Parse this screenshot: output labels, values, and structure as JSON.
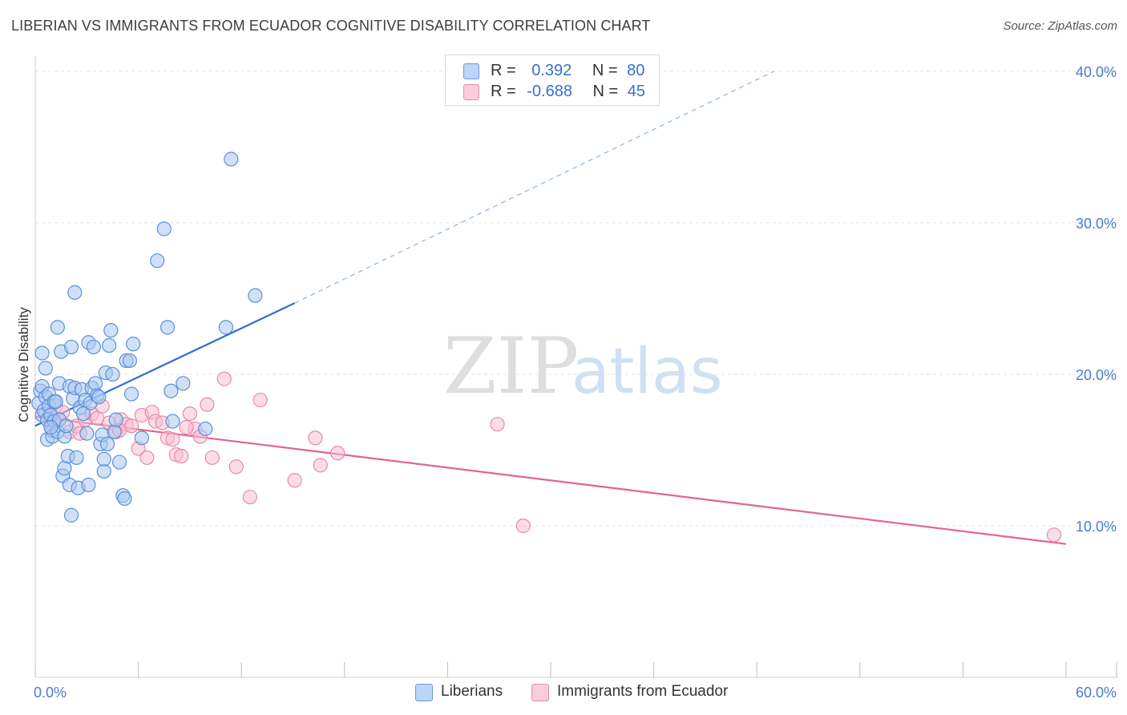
{
  "title": "LIBERIAN VS IMMIGRANTS FROM ECUADOR COGNITIVE DISABILITY CORRELATION CHART",
  "source": "Source: ZipAtlas.com",
  "watermark": {
    "zip": "ZIP",
    "atlas": "atlas"
  },
  "legend": {
    "r_label": "R =",
    "n_label": "N =",
    "series": [
      {
        "r": "0.392",
        "n": "80"
      },
      {
        "r": "-0.688",
        "n": "45"
      }
    ]
  },
  "bottom_legend": [
    "Liberians",
    "Immigrants from Ecuador"
  ],
  "colors": {
    "blue_fill": "#a9c8f0",
    "blue_stroke": "#5a8fd8",
    "blue_line": "#2f6fce",
    "pink_fill": "#f7c0d3",
    "pink_stroke": "#e889a9",
    "pink_line": "#e5638f"
  },
  "chart_data": {
    "type": "scatter",
    "title": "LIBERIAN VS IMMIGRANTS FROM ECUADOR COGNITIVE DISABILITY CORRELATION CHART",
    "xlabel": "",
    "ylabel": "Cognitive Disability",
    "xlim": [
      0,
      60
    ],
    "ylim": [
      0,
      41
    ],
    "x_tick_labels": [
      "0.0%",
      "60.0%"
    ],
    "y_ticks": [
      10,
      20,
      30,
      40
    ],
    "y_tick_labels": [
      "10.0%",
      "20.0%",
      "30.0%",
      "40.0%"
    ],
    "grid": true,
    "legend_position": "top-center",
    "series": [
      {
        "name": "Liberians",
        "r": 0.392,
        "n": 80,
        "trend": {
          "x_start": 0,
          "y_start": 16.6,
          "x_solid_end": 15.1,
          "y_solid_end": 24.7,
          "x_dash_end": 43.0,
          "y_dash_end": 40.0
        },
        "points": [
          [
            0.2,
            18.1
          ],
          [
            0.3,
            18.9
          ],
          [
            0.4,
            17.3
          ],
          [
            0.4,
            19.2
          ],
          [
            0.5,
            17.6
          ],
          [
            0.4,
            21.4
          ],
          [
            0.6,
            18.5
          ],
          [
            0.8,
            18.7
          ],
          [
            0.6,
            20.4
          ],
          [
            0.7,
            17.0
          ],
          [
            0.7,
            15.7
          ],
          [
            0.8,
            17.9
          ],
          [
            0.9,
            17.3
          ],
          [
            1.0,
            16.3
          ],
          [
            1.1,
            18.2
          ],
          [
            1.0,
            15.9
          ],
          [
            1.1,
            16.9
          ],
          [
            1.2,
            18.2
          ],
          [
            1.3,
            16.2
          ],
          [
            1.4,
            19.4
          ],
          [
            1.3,
            23.1
          ],
          [
            1.4,
            17.0
          ],
          [
            1.5,
            21.5
          ],
          [
            1.6,
            13.3
          ],
          [
            1.7,
            13.8
          ],
          [
            1.7,
            15.9
          ],
          [
            1.9,
            14.6
          ],
          [
            2.0,
            19.2
          ],
          [
            2.0,
            12.7
          ],
          [
            2.1,
            10.7
          ],
          [
            2.1,
            21.8
          ],
          [
            2.2,
            18.4
          ],
          [
            2.3,
            25.4
          ],
          [
            2.3,
            19.1
          ],
          [
            2.4,
            14.5
          ],
          [
            2.5,
            12.5
          ],
          [
            2.6,
            17.8
          ],
          [
            2.7,
            19.0
          ],
          [
            2.9,
            18.3
          ],
          [
            3.0,
            16.1
          ],
          [
            3.1,
            22.1
          ],
          [
            3.1,
            12.7
          ],
          [
            3.2,
            18.1
          ],
          [
            3.3,
            19.1
          ],
          [
            3.4,
            21.8
          ],
          [
            3.5,
            19.4
          ],
          [
            3.6,
            18.6
          ],
          [
            3.7,
            18.5
          ],
          [
            3.8,
            15.4
          ],
          [
            3.9,
            16.0
          ],
          [
            4.0,
            13.6
          ],
          [
            4.0,
            14.4
          ],
          [
            4.1,
            20.1
          ],
          [
            4.2,
            15.4
          ],
          [
            4.3,
            21.9
          ],
          [
            4.4,
            22.9
          ],
          [
            4.5,
            20.0
          ],
          [
            4.6,
            16.2
          ],
          [
            4.7,
            17.0
          ],
          [
            4.9,
            14.2
          ],
          [
            5.1,
            12.0
          ],
          [
            5.2,
            11.8
          ],
          [
            5.3,
            20.9
          ],
          [
            5.5,
            20.9
          ],
          [
            5.6,
            18.7
          ],
          [
            5.7,
            22.0
          ],
          [
            6.2,
            15.8
          ],
          [
            7.1,
            27.5
          ],
          [
            7.5,
            29.6
          ],
          [
            7.7,
            23.1
          ],
          [
            7.9,
            18.9
          ],
          [
            8.0,
            16.9
          ],
          [
            8.6,
            19.4
          ],
          [
            9.9,
            16.4
          ],
          [
            11.1,
            23.1
          ],
          [
            11.4,
            34.2
          ],
          [
            12.8,
            25.2
          ],
          [
            1.8,
            16.6
          ],
          [
            2.8,
            17.4
          ],
          [
            0.9,
            16.5
          ]
        ]
      },
      {
        "name": "Immigrants from Ecuador",
        "r": -0.688,
        "n": 45,
        "trend": {
          "x_start": 0,
          "y_start": 17.2,
          "x_end": 60,
          "y_end": 8.8
        },
        "points": [
          [
            0.6,
            17.4
          ],
          [
            0.9,
            16.8
          ],
          [
            1.2,
            17.9
          ],
          [
            1.6,
            17.5
          ],
          [
            2.0,
            16.2
          ],
          [
            2.4,
            16.6
          ],
          [
            2.9,
            17.0
          ],
          [
            3.3,
            17.4
          ],
          [
            3.6,
            17.1
          ],
          [
            3.9,
            17.9
          ],
          [
            4.3,
            16.8
          ],
          [
            4.7,
            16.2
          ],
          [
            5.0,
            17.0
          ],
          [
            5.3,
            16.7
          ],
          [
            5.6,
            16.6
          ],
          [
            6.0,
            15.1
          ],
          [
            6.2,
            17.3
          ],
          [
            6.5,
            14.5
          ],
          [
            6.8,
            17.5
          ],
          [
            7.0,
            16.9
          ],
          [
            7.4,
            16.8
          ],
          [
            7.7,
            15.8
          ],
          [
            8.0,
            15.7
          ],
          [
            8.2,
            14.7
          ],
          [
            8.5,
            14.6
          ],
          [
            9.0,
            17.4
          ],
          [
            9.3,
            16.4
          ],
          [
            9.6,
            15.9
          ],
          [
            10.0,
            18.0
          ],
          [
            10.3,
            14.5
          ],
          [
            11.0,
            19.7
          ],
          [
            11.7,
            13.9
          ],
          [
            12.5,
            11.9
          ],
          [
            13.1,
            18.3
          ],
          [
            15.1,
            13.0
          ],
          [
            16.3,
            15.8
          ],
          [
            16.6,
            14.0
          ],
          [
            17.6,
            14.8
          ],
          [
            26.9,
            16.7
          ],
          [
            28.4,
            10.0
          ],
          [
            59.3,
            9.4
          ],
          [
            1.4,
            17.0
          ],
          [
            2.6,
            16.1
          ],
          [
            4.9,
            16.3
          ],
          [
            8.8,
            16.5
          ]
        ]
      }
    ]
  }
}
